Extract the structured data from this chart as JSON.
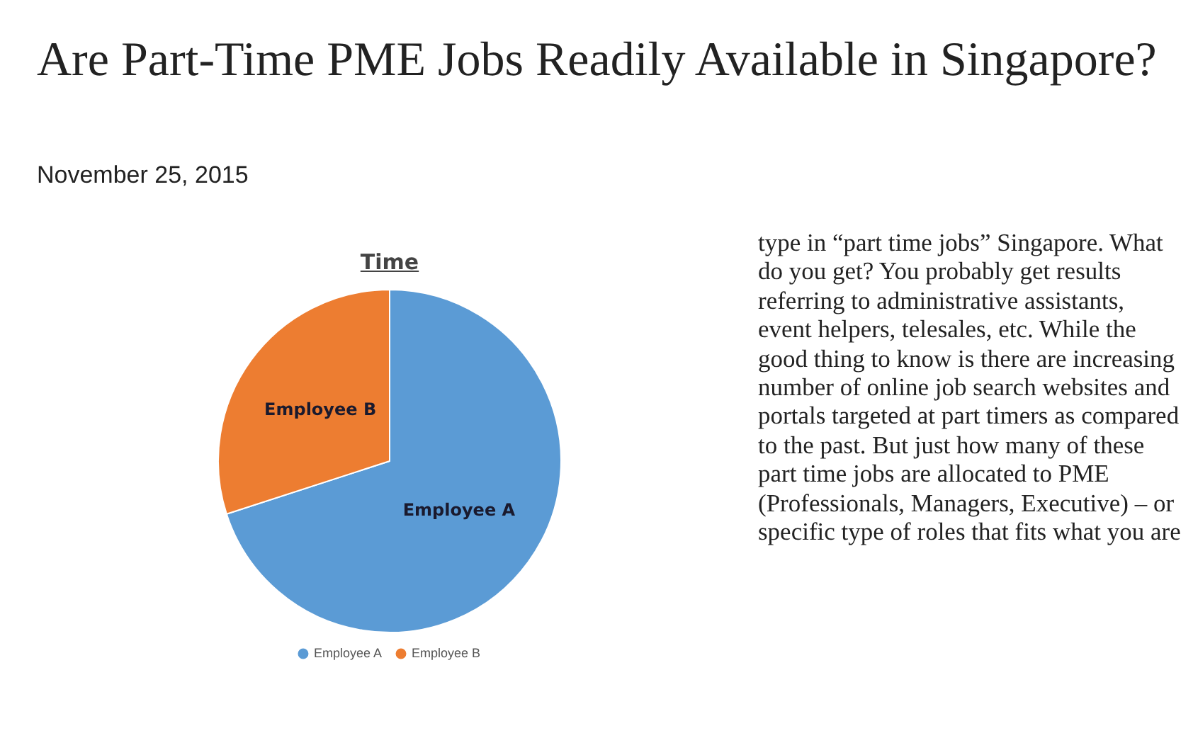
{
  "chart_data": {
    "type": "pie",
    "title": "Are Part-Time PME Jobs Readily Available in Singapore?",
    "subtitle": "November 25, 2015",
    "xlabel": "Time",
    "categories": [
      "Employee A",
      "Employee B"
    ],
    "values": [
      70,
      30
    ],
    "colors": [
      "#5b9bd5",
      "#ed7d31"
    ],
    "legend": "bottom",
    "annotations": [
      "type in “part time jobs” Singapore. What do you get? You probably get results referring to administrative assistants, event helpers, telesales, etc. While the good thing to know is there are increasing number of online job search websites and portals targeted at part timers as compared to the past. But just how many of these part time jobs are allocated to PME (Professionals, Managers, Executive) – or specific type of roles that fits what you are"
    ]
  }
}
